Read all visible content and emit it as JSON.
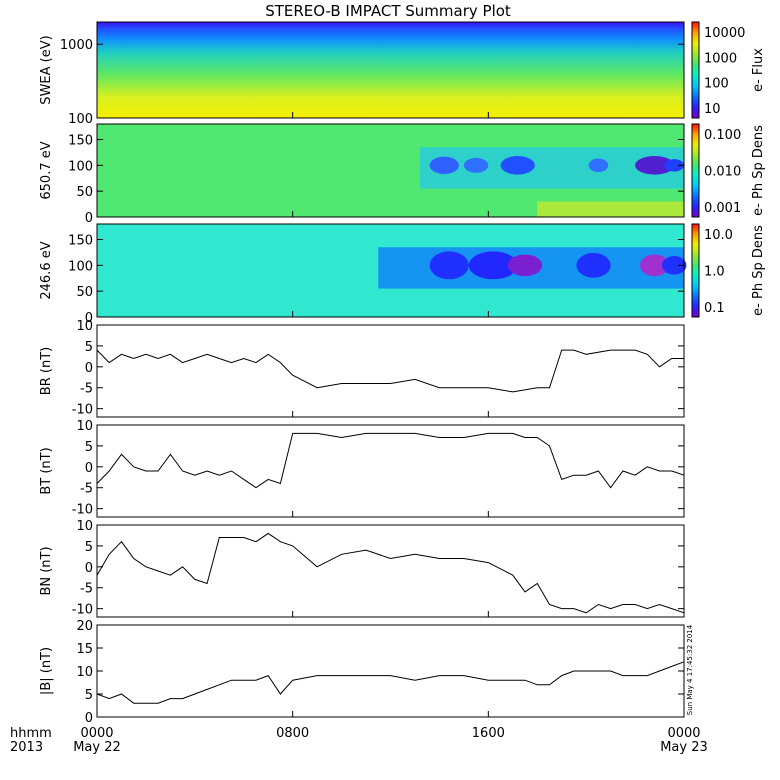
{
  "title": "STEREO-B IMPACT Summary Plot",
  "footer": {
    "unit_label": "hhmm",
    "year_label": "2013",
    "stamp": "Sun May  4 17:45:32 2014"
  },
  "colors": {
    "line": "#000000",
    "rainbow": [
      "#7a00c8",
      "#2a20ff",
      "#0a70ff",
      "#00c8ff",
      "#00f0d0",
      "#40e870",
      "#a0e830",
      "#f0f000",
      "#ffa000",
      "#ff1000"
    ]
  },
  "chart_data": [
    {
      "type": "heatmap",
      "id": "swea",
      "ylabel": "SWEA (eV)",
      "yscale": "log",
      "ylim": [
        100,
        2000
      ],
      "yticks": [
        "1000",
        "100"
      ],
      "colorbar": {
        "label": "e- Flux",
        "scale": "log",
        "range": [
          10,
          20000
        ],
        "ticks": [
          "10000",
          "1000",
          "100",
          "10"
        ]
      }
    },
    {
      "type": "heatmap",
      "id": "pad650",
      "ylabel": "650.7 eV",
      "ylim": [
        0,
        180
      ],
      "yticks": [
        "150",
        "100",
        "50",
        "0"
      ],
      "colorbar": {
        "label": "e- Ph Sp Dens",
        "scale": "log",
        "range": [
          0.001,
          0.1
        ],
        "ticks": [
          "0.100",
          "0.010",
          "0.001"
        ]
      }
    },
    {
      "type": "heatmap",
      "id": "pad246",
      "ylabel": "246.6 eV",
      "ylim": [
        0,
        180
      ],
      "yticks": [
        "150",
        "100",
        "50",
        "0"
      ],
      "colorbar": {
        "label": "e- Ph Sp Dens",
        "scale": "log",
        "range": [
          0.1,
          10
        ],
        "ticks": [
          "10.0",
          "1.0",
          "0.1"
        ]
      }
    },
    {
      "type": "line",
      "id": "br",
      "ylabel": "BR (nT)",
      "ylim": [
        -12,
        10
      ],
      "yticks": [
        "10",
        "5",
        "0",
        "-5",
        "-10"
      ],
      "x": [
        0,
        0.5,
        1,
        1.5,
        2,
        2.5,
        3,
        3.5,
        4,
        4.5,
        5,
        5.5,
        6,
        6.5,
        7,
        7.5,
        8,
        9,
        10,
        11,
        12,
        13,
        14,
        15,
        16,
        17,
        18,
        18.5,
        19,
        19.5,
        20,
        21,
        22,
        22.5,
        23,
        23.5,
        24
      ],
      "y": [
        4,
        1,
        3,
        2,
        3,
        2,
        3,
        1,
        2,
        3,
        2,
        1,
        2,
        1,
        3,
        1,
        -2,
        -5,
        -4,
        -4,
        -4,
        -3,
        -5,
        -5,
        -5,
        -6,
        -5,
        -5,
        4,
        4,
        3,
        4,
        4,
        3,
        0,
        2,
        2
      ]
    },
    {
      "type": "line",
      "id": "bt",
      "ylabel": "BT (nT)",
      "ylim": [
        -12,
        10
      ],
      "yticks": [
        "10",
        "5",
        "0",
        "-5",
        "-10"
      ],
      "x": [
        0,
        0.5,
        1,
        1.5,
        2,
        2.5,
        3,
        3.5,
        4,
        4.5,
        5,
        5.5,
        6,
        6.5,
        7,
        7.5,
        8,
        9,
        10,
        11,
        12,
        13,
        14,
        15,
        16,
        17,
        17.5,
        18,
        18.5,
        19,
        19.5,
        20,
        20.5,
        21,
        21.5,
        22,
        22.5,
        23,
        23.5,
        24
      ],
      "y": [
        -4,
        -1,
        3,
        0,
        -1,
        -1,
        3,
        -1,
        -2,
        -1,
        -2,
        -1,
        -3,
        -5,
        -3,
        -4,
        8,
        8,
        7,
        8,
        8,
        8,
        7,
        7,
        8,
        8,
        7,
        7,
        5,
        -3,
        -2,
        -2,
        -1,
        -5,
        -1,
        -2,
        0,
        -1,
        -1,
        -2
      ]
    },
    {
      "type": "line",
      "id": "bn",
      "ylabel": "BN (nT)",
      "ylim": [
        -12,
        10
      ],
      "yticks": [
        "10",
        "5",
        "0",
        "-5",
        "-10"
      ],
      "x": [
        0,
        0.5,
        1,
        1.5,
        2,
        2.5,
        3,
        3.5,
        4,
        4.5,
        5,
        5.5,
        6,
        6.5,
        7,
        7.5,
        8,
        9,
        10,
        11,
        12,
        13,
        14,
        15,
        16,
        17,
        17.5,
        18,
        18.5,
        19,
        19.5,
        20,
        20.5,
        21,
        21.5,
        22,
        22.5,
        23,
        23.5,
        24
      ],
      "y": [
        -2,
        3,
        6,
        2,
        0,
        -1,
        -2,
        0,
        -3,
        -4,
        7,
        7,
        7,
        6,
        8,
        6,
        5,
        0,
        3,
        4,
        2,
        3,
        2,
        2,
        1,
        -2,
        -6,
        -4,
        -9,
        -10,
        -10,
        -11,
        -9,
        -10,
        -9,
        -9,
        -10,
        -9,
        -10,
        -11
      ]
    },
    {
      "type": "line",
      "id": "babs",
      "ylabel": "|B| (nT)",
      "ylim": [
        0,
        20
      ],
      "yticks": [
        "20",
        "15",
        "10",
        "5",
        "0"
      ],
      "x": [
        0,
        0.5,
        1,
        1.5,
        2,
        2.5,
        3,
        3.5,
        4,
        4.5,
        5,
        5.5,
        6,
        6.5,
        7,
        7.5,
        8,
        9,
        10,
        11,
        12,
        13,
        14,
        15,
        16,
        17,
        17.5,
        18,
        18.5,
        19,
        19.5,
        20,
        20.5,
        21,
        21.5,
        22,
        22.5,
        23,
        23.5,
        24
      ],
      "y": [
        5,
        4,
        5,
        3,
        3,
        3,
        4,
        4,
        5,
        6,
        7,
        8,
        8,
        8,
        9,
        5,
        8,
        9,
        9,
        9,
        9,
        8,
        9,
        9,
        8,
        8,
        8,
        7,
        7,
        9,
        10,
        10,
        10,
        10,
        9,
        9,
        9,
        10,
        11,
        12
      ]
    }
  ],
  "xaxis": {
    "ticks": [
      {
        "value": 0,
        "top": "0000",
        "bottom": "May 22"
      },
      {
        "value": 8,
        "top": "0800",
        "bottom": ""
      },
      {
        "value": 16,
        "top": "1600",
        "bottom": ""
      },
      {
        "value": 24,
        "top": "0000",
        "bottom": "May 23"
      }
    ]
  }
}
